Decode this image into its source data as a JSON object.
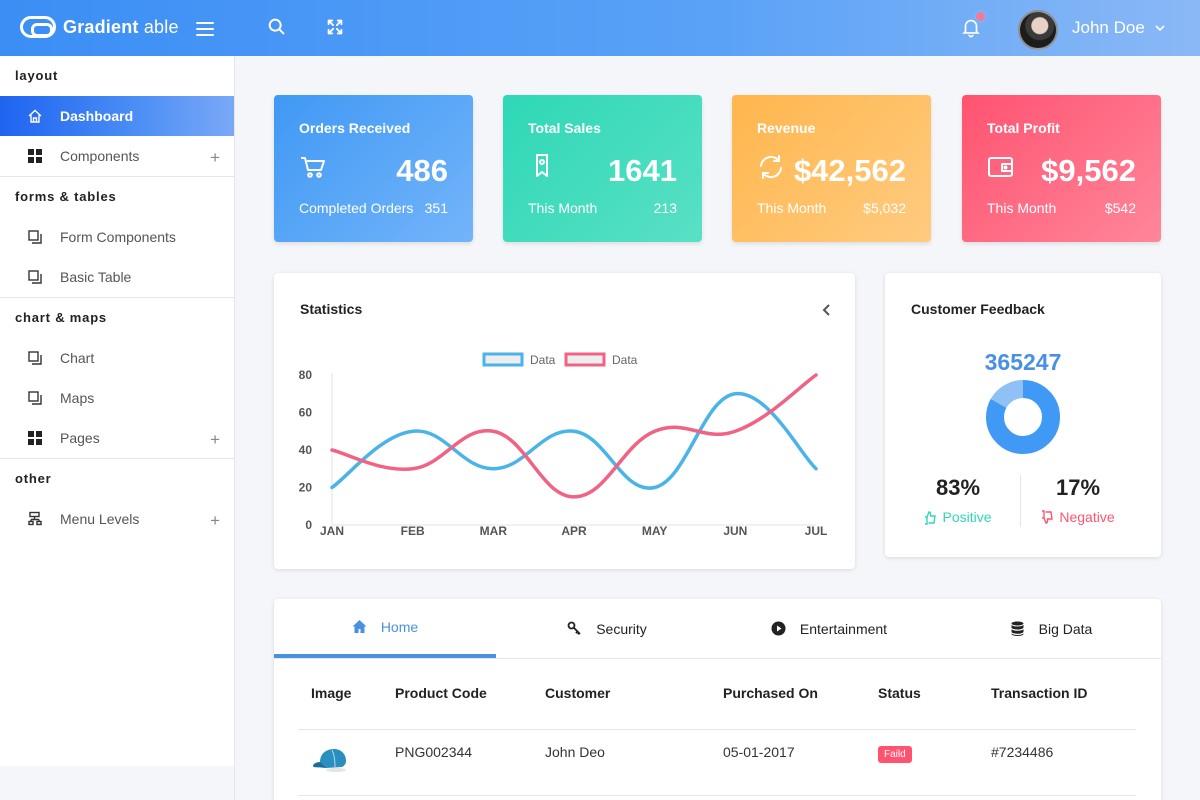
{
  "header": {
    "brand_bold": "Gradient",
    "brand_light": " able",
    "user_name": "John Doe"
  },
  "sidebar": {
    "sections": [
      {
        "caption": "layout",
        "items": [
          {
            "label": "Dashboard",
            "icon": "home-icon",
            "active": true
          },
          {
            "label": "Components",
            "icon": "grid-icon",
            "expandable": true
          }
        ]
      },
      {
        "caption": "forms & tables",
        "items": [
          {
            "label": "Form Components",
            "icon": "copy-icon"
          },
          {
            "label": "Basic Table",
            "icon": "copy-icon"
          }
        ]
      },
      {
        "caption": "chart & maps",
        "items": [
          {
            "label": "Chart",
            "icon": "copy-icon"
          },
          {
            "label": "Maps",
            "icon": "copy-icon"
          },
          {
            "label": "Pages",
            "icon": "grid-icon",
            "expandable": true
          }
        ]
      },
      {
        "caption": "other",
        "items": [
          {
            "label": "Menu Levels",
            "icon": "sitemap-icon",
            "expandable": true
          }
        ]
      }
    ]
  },
  "cards": [
    {
      "title": "Orders Received",
      "value": "486",
      "sub_label": "Completed Orders",
      "sub_value": "351",
      "icon": "cart-icon",
      "color": "#4099f4"
    },
    {
      "title": "Total Sales",
      "value": "1641",
      "sub_label": "This Month",
      "sub_value": "213",
      "icon": "tag-icon",
      "color": "#2ed8b6"
    },
    {
      "title": "Revenue",
      "value": "$42,562",
      "sub_label": "This Month",
      "sub_value": "$5,032",
      "icon": "refresh-icon",
      "color": "#ffb64d"
    },
    {
      "title": "Total Profit",
      "value": "$9,562",
      "sub_label": "This Month",
      "sub_value": "$542",
      "icon": "wallet-icon",
      "color": "#ff5370"
    }
  ],
  "statistics": {
    "title": "Statistics"
  },
  "chart_data": {
    "type": "line",
    "categories": [
      "JAN",
      "FEB",
      "MAR",
      "APR",
      "MAY",
      "JUN",
      "JUL"
    ],
    "series": [
      {
        "name": "Data",
        "color": "#4ab3e8",
        "values": [
          20,
          50,
          30,
          50,
          20,
          70,
          30
        ]
      },
      {
        "name": "Data",
        "color": "#f06384",
        "values": [
          40,
          30,
          50,
          15,
          50,
          50,
          80
        ]
      }
    ],
    "ylim": [
      0,
      80
    ],
    "yticks": [
      0,
      20,
      40,
      60,
      80
    ],
    "legend": "top",
    "grid": false
  },
  "feedback": {
    "title": "Customer Feedback",
    "total": "365247",
    "positive_pct": "83%",
    "positive_label": "Positive",
    "negative_pct": "17%",
    "negative_label": "Negative",
    "donut": {
      "positive": 83,
      "negative": 17,
      "positive_color": "#4099f4",
      "negative_color": "#8fc1f7"
    },
    "positive_color": "#2ed8b6",
    "negative_color": "#ff5370"
  },
  "tabs": [
    {
      "label": "Home",
      "icon": "home-icon",
      "active": true
    },
    {
      "label": "Security",
      "icon": "key-icon"
    },
    {
      "label": "Entertainment",
      "icon": "play-icon"
    },
    {
      "label": "Big Data",
      "icon": "database-icon"
    }
  ],
  "table": {
    "columns": [
      "Image",
      "Product Code",
      "Customer",
      "Purchased On",
      "Status",
      "Transaction ID"
    ],
    "rows": [
      {
        "image": "cap-image",
        "product_code": "PNG002344",
        "customer": "John Deo",
        "purchased_on": "05-01-2017",
        "status": "Faild",
        "transaction_id": "#7234486"
      }
    ]
  }
}
